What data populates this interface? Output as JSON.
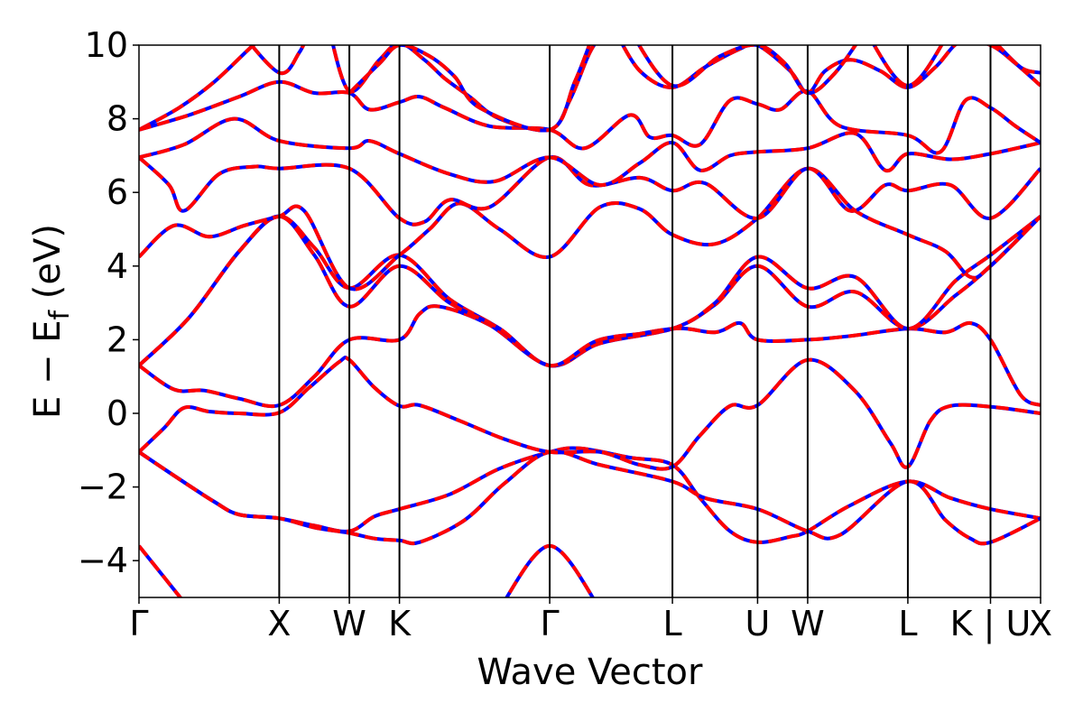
{
  "chart_data": {
    "type": "line",
    "xlabel": "Wave Vector",
    "ylabel": {
      "base": "E − E",
      "sub": "f",
      "unit": " (eV)"
    },
    "ylim": [
      -5,
      10
    ],
    "yticks": [
      -4,
      -2,
      0,
      2,
      4,
      6,
      8,
      10
    ],
    "ytick_labels": [
      "−4",
      "−2",
      "0",
      "2",
      "4",
      "6",
      "8",
      "10"
    ],
    "xlim": [
      0,
      18
    ],
    "kpoints": [
      {
        "label": "Γ",
        "x": 0
      },
      {
        "label": "X",
        "x": 2.8
      },
      {
        "label": "W",
        "x": 4.2
      },
      {
        "label": "K",
        "x": 5.2
      },
      {
        "label": "Γ",
        "x": 8.2
      },
      {
        "label": "L",
        "x": 10.65
      },
      {
        "label": "U",
        "x": 12.35
      },
      {
        "label": "W",
        "x": 13.35
      },
      {
        "label": "L",
        "x": 15.35
      },
      {
        "label": "K | U",
        "x": 17.0
      },
      {
        "label": "X",
        "x": 18.0
      }
    ],
    "grid": false,
    "colors": {
      "series_a": "#ff0000",
      "series_b": "#0000ff",
      "kline": "#000000"
    },
    "bands": [
      [
        [
          0,
          -3.6
        ],
        [
          1.0,
          -5.3
        ]
      ],
      [
        [
          7.2,
          -5.3
        ],
        [
          8.2,
          -3.6
        ],
        [
          9.2,
          -5.3
        ]
      ],
      [
        [
          0,
          -1.05
        ],
        [
          0.6,
          -1.6
        ],
        [
          1.5,
          -2.4
        ],
        [
          2.0,
          -2.75
        ],
        [
          2.8,
          -2.85
        ],
        [
          3.5,
          -3.05
        ],
        [
          4.2,
          -3.2
        ],
        [
          4.7,
          -2.8
        ],
        [
          5.2,
          -2.6
        ],
        [
          6.2,
          -2.2
        ],
        [
          7.2,
          -1.5
        ],
        [
          8.2,
          -1.05
        ],
        [
          8.8,
          -0.95
        ],
        [
          9.8,
          -1.2
        ],
        [
          10.65,
          -1.4
        ],
        [
          11.2,
          -2.3
        ],
        [
          11.8,
          -3.2
        ],
        [
          12.35,
          -3.5
        ],
        [
          13.0,
          -3.35
        ],
        [
          13.35,
          -3.2
        ],
        [
          14.2,
          -2.5
        ],
        [
          15.35,
          -1.85
        ],
        [
          16.2,
          -2.3
        ],
        [
          17.0,
          -2.6
        ],
        [
          18.0,
          -2.85
        ]
      ],
      [
        [
          0,
          -1.05
        ],
        [
          0.6,
          -1.6
        ],
        [
          1.5,
          -2.4
        ],
        [
          2.0,
          -2.75
        ],
        [
          2.8,
          -2.85
        ],
        [
          3.5,
          -3.1
        ],
        [
          4.2,
          -3.25
        ],
        [
          4.7,
          -3.4
        ],
        [
          5.2,
          -3.45
        ],
        [
          5.6,
          -3.5
        ],
        [
          6.5,
          -2.9
        ],
        [
          7.3,
          -1.9
        ],
        [
          8.2,
          -1.05
        ],
        [
          9.2,
          -1.4
        ],
        [
          10.65,
          -1.85
        ],
        [
          11.3,
          -2.3
        ],
        [
          12.35,
          -2.6
        ],
        [
          13.35,
          -3.2
        ],
        [
          14.0,
          -3.3
        ],
        [
          15.35,
          -1.85
        ],
        [
          16.1,
          -2.9
        ],
        [
          16.6,
          -3.4
        ],
        [
          17.0,
          -3.5
        ],
        [
          18.0,
          -2.85
        ]
      ],
      [
        [
          0,
          -1.05
        ],
        [
          0.5,
          -0.4
        ],
        [
          0.9,
          0.15
        ],
        [
          1.4,
          0.05
        ],
        [
          2.0,
          0.0
        ],
        [
          2.8,
          0.02
        ],
        [
          3.4,
          0.7
        ],
        [
          4.0,
          1.4
        ],
        [
          4.2,
          1.45
        ],
        [
          4.7,
          0.7
        ],
        [
          5.2,
          0.2
        ],
        [
          5.6,
          0.22
        ],
        [
          6.4,
          -0.2
        ],
        [
          7.3,
          -0.7
        ],
        [
          8.2,
          -1.05
        ],
        [
          9.2,
          -1.05
        ],
        [
          10.0,
          -1.4
        ],
        [
          10.65,
          -1.45
        ],
        [
          11.2,
          -0.6
        ],
        [
          11.8,
          0.2
        ],
        [
          12.35,
          0.22
        ],
        [
          13.35,
          1.45
        ],
        [
          14.3,
          0.6
        ],
        [
          15.0,
          -0.8
        ],
        [
          15.35,
          -1.45
        ],
        [
          15.8,
          -0.2
        ],
        [
          16.2,
          0.2
        ],
        [
          17.0,
          0.18
        ],
        [
          18.0,
          0.0
        ]
      ],
      [
        [
          0,
          1.3
        ],
        [
          0.7,
          0.65
        ],
        [
          1.3,
          0.62
        ],
        [
          2.0,
          0.4
        ],
        [
          2.8,
          0.22
        ],
        [
          3.5,
          1.0
        ],
        [
          4.2,
          2.0
        ],
        [
          5.2,
          2.0
        ],
        [
          5.6,
          2.7
        ],
        [
          6.0,
          2.9
        ],
        [
          7.0,
          2.4
        ],
        [
          8.2,
          1.3
        ],
        [
          9.2,
          1.9
        ],
        [
          10.65,
          2.3
        ],
        [
          11.5,
          2.2
        ],
        [
          12.0,
          2.45
        ],
        [
          12.35,
          2.0
        ],
        [
          13.35,
          2.0
        ],
        [
          14.2,
          2.1
        ],
        [
          15.35,
          2.3
        ],
        [
          16.1,
          2.2
        ],
        [
          16.6,
          2.45
        ],
        [
          17.0,
          2.0
        ],
        [
          17.6,
          0.5
        ],
        [
          18.0,
          0.22
        ]
      ],
      [
        [
          0,
          1.3
        ],
        [
          1.0,
          2.6
        ],
        [
          2.0,
          4.4
        ],
        [
          2.8,
          5.35
        ],
        [
          3.5,
          4.5
        ],
        [
          4.2,
          3.4
        ],
        [
          5.2,
          4.3
        ],
        [
          6.2,
          3.1
        ],
        [
          7.2,
          2.3
        ],
        [
          8.2,
          1.3
        ],
        [
          9.2,
          1.9
        ],
        [
          10.65,
          2.3
        ],
        [
          11.5,
          2.95
        ],
        [
          12.35,
          4.0
        ],
        [
          13.35,
          2.9
        ],
        [
          14.3,
          3.3
        ],
        [
          15.35,
          2.3
        ],
        [
          16.3,
          3.2
        ],
        [
          17.0,
          4.0
        ],
        [
          18.0,
          5.35
        ]
      ],
      [
        [
          0,
          1.3
        ],
        [
          1.0,
          2.6
        ],
        [
          2.0,
          4.4
        ],
        [
          2.8,
          5.35
        ],
        [
          3.5,
          4.3
        ],
        [
          4.2,
          2.9
        ],
        [
          5.2,
          4.0
        ],
        [
          6.2,
          3.0
        ],
        [
          7.2,
          2.3
        ],
        [
          8.2,
          1.3
        ],
        [
          9.2,
          2.0
        ],
        [
          10.65,
          2.3
        ],
        [
          11.5,
          3.0
        ],
        [
          12.35,
          4.25
        ],
        [
          13.35,
          3.4
        ],
        [
          14.3,
          3.7
        ],
        [
          15.35,
          2.3
        ],
        [
          16.3,
          3.6
        ],
        [
          17.0,
          4.3
        ],
        [
          18.0,
          5.35
        ]
      ],
      [
        [
          0,
          4.25
        ],
        [
          0.7,
          5.1
        ],
        [
          1.4,
          4.8
        ],
        [
          2.1,
          5.1
        ],
        [
          2.8,
          5.35
        ],
        [
          3.3,
          5.5
        ],
        [
          4.2,
          3.4
        ],
        [
          5.2,
          4.3
        ],
        [
          5.8,
          5.0
        ],
        [
          6.4,
          5.7
        ],
        [
          7.2,
          5.0
        ],
        [
          8.2,
          4.25
        ],
        [
          9.2,
          5.6
        ],
        [
          10.0,
          5.55
        ],
        [
          10.65,
          4.85
        ],
        [
          11.5,
          4.6
        ],
        [
          12.35,
          5.3
        ],
        [
          13.35,
          6.65
        ],
        [
          14.3,
          5.5
        ],
        [
          15.35,
          4.85
        ],
        [
          16.1,
          4.4
        ],
        [
          16.6,
          3.7
        ],
        [
          17.0,
          4.0
        ],
        [
          18.0,
          5.35
        ]
      ],
      [
        [
          0,
          6.95
        ],
        [
          0.6,
          6.2
        ],
        [
          0.9,
          5.5
        ],
        [
          1.6,
          6.5
        ],
        [
          2.3,
          6.7
        ],
        [
          2.8,
          6.65
        ],
        [
          4.2,
          6.65
        ],
        [
          5.2,
          5.3
        ],
        [
          5.7,
          5.2
        ],
        [
          6.2,
          5.8
        ],
        [
          7.0,
          5.6
        ],
        [
          8.2,
          6.95
        ],
        [
          9.0,
          6.2
        ],
        [
          10.0,
          6.4
        ],
        [
          10.65,
          6.05
        ],
        [
          11.3,
          6.25
        ],
        [
          12.35,
          5.3
        ],
        [
          13.35,
          6.65
        ],
        [
          14.2,
          5.5
        ],
        [
          14.9,
          6.2
        ],
        [
          15.35,
          6.05
        ],
        [
          16.2,
          6.2
        ],
        [
          17.0,
          5.3
        ],
        [
          18.0,
          6.65
        ]
      ],
      [
        [
          0,
          6.95
        ],
        [
          0.9,
          7.3
        ],
        [
          1.9,
          8.0
        ],
        [
          2.8,
          7.4
        ],
        [
          4.2,
          7.2
        ],
        [
          4.6,
          7.4
        ],
        [
          5.2,
          7.05
        ],
        [
          6.2,
          6.5
        ],
        [
          7.1,
          6.3
        ],
        [
          8.2,
          6.95
        ],
        [
          9.2,
          6.2
        ],
        [
          10.0,
          6.8
        ],
        [
          10.65,
          7.35
        ],
        [
          11.2,
          6.6
        ],
        [
          11.8,
          7.0
        ],
        [
          12.35,
          7.1
        ],
        [
          13.35,
          7.2
        ],
        [
          14.3,
          7.6
        ],
        [
          14.9,
          6.6
        ],
        [
          15.35,
          7.05
        ],
        [
          16.2,
          6.9
        ],
        [
          17.0,
          7.05
        ],
        [
          18.0,
          7.35
        ]
      ],
      [
        [
          0,
          7.7
        ],
        [
          0.8,
          8.3
        ],
        [
          1.5,
          9.0
        ],
        [
          2.2,
          9.9
        ],
        [
          2.6,
          10.4
        ]
      ],
      [
        [
          0,
          7.7
        ],
        [
          1.0,
          8.1
        ],
        [
          2.0,
          8.6
        ],
        [
          2.8,
          9.0
        ],
        [
          3.5,
          8.7
        ],
        [
          4.2,
          8.7
        ],
        [
          4.6,
          8.25
        ],
        [
          5.2,
          8.45
        ],
        [
          5.6,
          8.6
        ],
        [
          6.1,
          8.3
        ],
        [
          7.0,
          7.8
        ],
        [
          8.2,
          7.7
        ],
        [
          8.9,
          7.2
        ],
        [
          9.8,
          8.1
        ],
        [
          10.2,
          7.5
        ],
        [
          10.65,
          7.55
        ],
        [
          11.2,
          7.3
        ],
        [
          11.8,
          8.5
        ],
        [
          12.35,
          8.4
        ],
        [
          12.8,
          8.25
        ],
        [
          13.35,
          8.75
        ],
        [
          14.0,
          7.8
        ],
        [
          15.35,
          7.55
        ],
        [
          16.0,
          7.1
        ],
        [
          16.5,
          8.5
        ],
        [
          17.0,
          8.3
        ],
        [
          17.5,
          7.8
        ],
        [
          18.0,
          7.35
        ]
      ],
      [
        [
          2.0,
          10.4
        ],
        [
          2.8,
          9.25
        ],
        [
          3.2,
          9.8
        ],
        [
          3.4,
          10.4
        ]
      ],
      [
        [
          3.8,
          10.4
        ],
        [
          4.2,
          8.75
        ],
        [
          4.8,
          9.6
        ],
        [
          5.2,
          10.05
        ],
        [
          5.7,
          9.6
        ],
        [
          6.1,
          9.1
        ],
        [
          6.6,
          8.6
        ],
        [
          7.2,
          8.0
        ],
        [
          8.2,
          7.7
        ],
        [
          8.6,
          8.5
        ],
        [
          9.0,
          9.8
        ],
        [
          9.3,
          10.4
        ]
      ],
      [
        [
          4.2,
          8.7
        ],
        [
          4.8,
          9.5
        ],
        [
          5.2,
          10.0
        ],
        [
          5.8,
          9.7
        ],
        [
          6.3,
          9.15
        ],
        [
          6.8,
          8.3
        ],
        [
          8.2,
          7.7
        ],
        [
          8.7,
          9.0
        ],
        [
          9.1,
          10.4
        ]
      ],
      [
        [
          9.5,
          10.4
        ],
        [
          10.0,
          9.3
        ],
        [
          10.65,
          8.85
        ],
        [
          11.3,
          9.4
        ],
        [
          12.0,
          9.9
        ],
        [
          12.35,
          10.0
        ],
        [
          13.0,
          9.3
        ],
        [
          13.35,
          8.7
        ],
        [
          13.7,
          9.3
        ],
        [
          14.2,
          9.6
        ],
        [
          14.8,
          9.3
        ],
        [
          15.35,
          8.85
        ],
        [
          15.9,
          9.4
        ],
        [
          16.4,
          10.1
        ],
        [
          17.0,
          10.0
        ],
        [
          17.5,
          9.5
        ],
        [
          18.0,
          8.9
        ]
      ],
      [
        [
          9.8,
          10.4
        ],
        [
          10.65,
          8.9
        ],
        [
          11.6,
          9.7
        ],
        [
          12.35,
          10.0
        ],
        [
          12.9,
          9.5
        ],
        [
          13.35,
          8.7
        ],
        [
          13.9,
          9.25
        ],
        [
          14.5,
          10.4
        ]
      ],
      [
        [
          14.5,
          10.4
        ],
        [
          15.35,
          8.9
        ],
        [
          16.2,
          10.4
        ]
      ],
      [
        [
          16.8,
          10.4
        ],
        [
          17.0,
          10.2
        ],
        [
          17.6,
          9.4
        ],
        [
          18.0,
          9.25
        ]
      ]
    ]
  }
}
